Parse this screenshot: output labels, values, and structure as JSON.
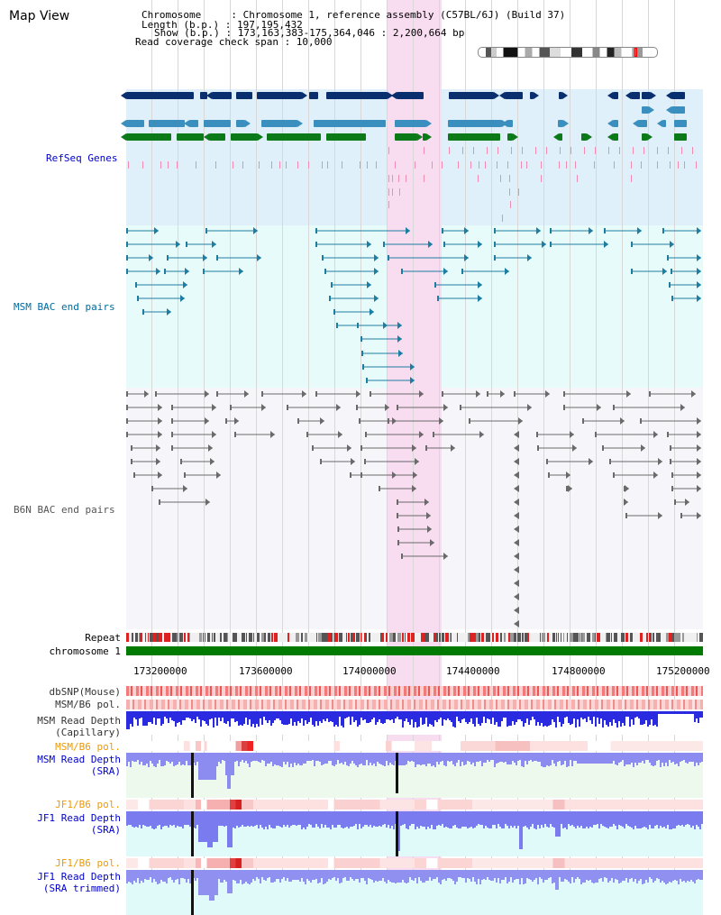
{
  "header": {
    "title": "Map View",
    "info_lines": [
      "Chromosome     : Chromosome 1, reference assembly (C57BL/6J) (Build 37)",
      "Length (b.p.) : 197,195,432",
      "Show (b.p.) : 173,163,383-175,364,046 : 2,200,664 bp",
      "Read coverage check span : 10,000"
    ]
  },
  "tracks": {
    "refseq": "RefSeq Genes",
    "msm_bac": "MSM BAC end pairs",
    "b6n_bac": "B6N BAC end pairs",
    "repeat": "Repeat",
    "chromosome": "chromosome 1",
    "dbsnp": "dbSNP(Mouse)",
    "msm_b6_pol_1": "MSM/B6 pol.",
    "msm_depth_cap_1": "MSM Read Depth",
    "msm_depth_cap_2": "(Capillary)",
    "msm_b6_pol_2": "MSM/B6 pol.",
    "msm_depth_sra_1": "MSM Read Depth",
    "msm_depth_sra_2": "(SRA)",
    "jf1_b6_pol_1": "JF1/B6 pol.",
    "jf1_depth_sra_1": "JF1 Read Depth",
    "jf1_depth_sra_2": "(SRA)",
    "jf1_b6_pol_2": "JF1/B6 pol.",
    "jf1_depth_trim_1": "JF1 Read Depth",
    "jf1_depth_trim_2": "(SRA trimmed)"
  },
  "axis": {
    "ticks": [
      "173200000",
      "173600000",
      "174000000",
      "174400000",
      "174800000",
      "175200000"
    ]
  },
  "colors": {
    "highlight": "#f8dcf0",
    "refseq_bg": "#dff0fa",
    "msm_bg": "#e8fbfb",
    "b6n_bg": "#f6f6fa",
    "refseq_label": "#0000cc",
    "msm_label": "#006b9e",
    "b6n_label": "#555555",
    "orange_label": "#ee9900",
    "blue_label": "#0000cc",
    "gene_dark": "#0a2f6e",
    "gene_mid": "#3a8fbf",
    "gene_green": "#0d7a1a",
    "gene_pink": "#f08cb0",
    "chromosome": "#007a00",
    "depth_blue": "#2222dd",
    "depth_light": "#8080ff"
  }
}
